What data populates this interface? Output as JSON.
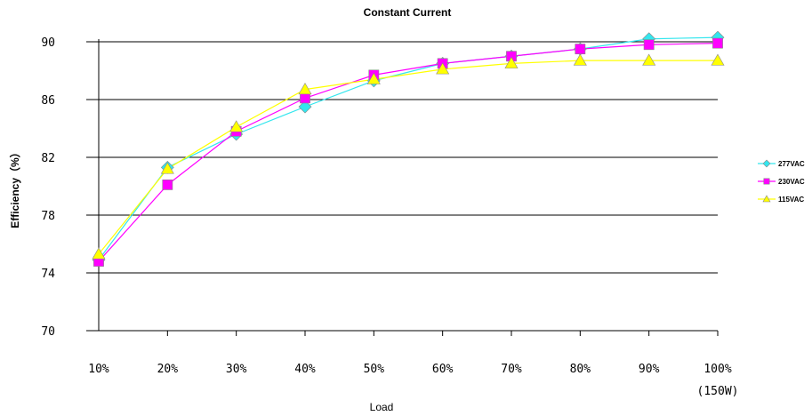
{
  "chart_data": {
    "type": "line",
    "title": "Constant Current",
    "xlabel": "Load",
    "ylabel": "Efficiency（%）",
    "categories": [
      "10%",
      "20%",
      "30%",
      "40%",
      "50%",
      "60%",
      "70%",
      "80%",
      "90%",
      "100%"
    ],
    "category_sublabel": "(150W)",
    "yticks": [
      70,
      74,
      78,
      82,
      86,
      90
    ],
    "ylim": [
      70,
      90
    ],
    "grid": true,
    "legend_position": "right",
    "series": [
      {
        "name": "277VAC",
        "color": "#33e6ee",
        "marker": "diamond",
        "values": [
          74.9,
          81.3,
          83.6,
          85.5,
          87.3,
          88.5,
          89.0,
          89.5,
          90.2,
          90.3
        ]
      },
      {
        "name": "230VAC",
        "color": "#ff00ff",
        "marker": "square",
        "values": [
          74.8,
          80.1,
          83.8,
          86.1,
          87.7,
          88.5,
          89.0,
          89.5,
          89.8,
          89.9
        ]
      },
      {
        "name": "115VAC",
        "color": "#ffff00",
        "marker": "triangle",
        "values": [
          75.3,
          81.2,
          84.1,
          86.7,
          87.4,
          88.1,
          88.5,
          88.7,
          88.7,
          88.7
        ]
      }
    ]
  }
}
